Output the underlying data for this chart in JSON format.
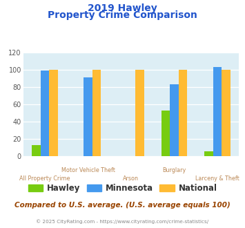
{
  "title_line1": "2019 Hawley",
  "title_line2": "Property Crime Comparison",
  "xlabel_top": [
    "",
    "Motor Vehicle Theft",
    "",
    "Burglary",
    ""
  ],
  "xlabel_bottom": [
    "All Property Crime",
    "",
    "Arson",
    "",
    "Larceny & Theft"
  ],
  "hawley": [
    13,
    0,
    0,
    53,
    6
  ],
  "minnesota": [
    99,
    91,
    0,
    83,
    103
  ],
  "national": [
    100,
    100,
    100,
    100,
    100
  ],
  "hawley_color": "#77cc11",
  "minnesota_color": "#4499ee",
  "national_color": "#ffbb33",
  "ylim": [
    0,
    120
  ],
  "yticks": [
    0,
    20,
    40,
    60,
    80,
    100,
    120
  ],
  "bg_color": "#ddeef5",
  "fig_bg": "#ffffff",
  "title_color": "#2255cc",
  "xlabel_color": "#bb8855",
  "legend_label_color": "#333333",
  "footer_text": "Compared to U.S. average. (U.S. average equals 100)",
  "footer_color": "#994400",
  "credit_text": "© 2025 CityRating.com - https://www.cityrating.com/crime-statistics/",
  "credit_color": "#888888",
  "bar_width": 0.22
}
